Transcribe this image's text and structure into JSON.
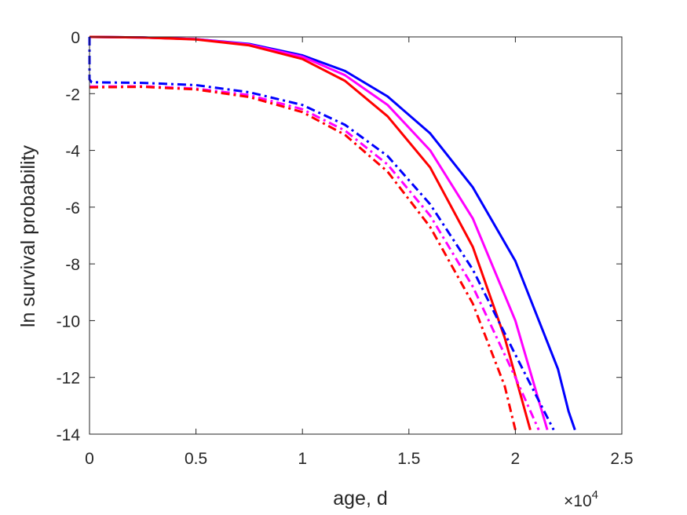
{
  "chart_data": {
    "type": "line",
    "title": "",
    "xlabel": "age, d",
    "ylabel": "ln survival probability",
    "x_exponent_label": "×10",
    "x_exponent_power": "4",
    "xlim": [
      0,
      2.5
    ],
    "ylim": [
      -14,
      0
    ],
    "x_ticks": [
      "0",
      "0.5",
      "1",
      "1.5",
      "2",
      "2.5"
    ],
    "y_ticks": [
      "0",
      "-2",
      "-4",
      "-6",
      "-8",
      "-10",
      "-12",
      "-14"
    ],
    "grid": false,
    "legend": "none",
    "series": [
      {
        "color": "#0000ff",
        "style": "solid",
        "x": [
          0,
          0.25,
          0.5,
          0.75,
          1.0,
          1.2,
          1.4,
          1.6,
          1.8,
          2.0,
          2.2,
          2.25,
          2.28
        ],
        "y": [
          0,
          -0.02,
          -0.08,
          -0.25,
          -0.65,
          -1.2,
          -2.1,
          -3.4,
          -5.3,
          -7.9,
          -11.7,
          -13.2,
          -13.85
        ]
      },
      {
        "color": "#ff00ff",
        "style": "solid",
        "x": [
          0,
          0.25,
          0.5,
          0.75,
          1.0,
          1.2,
          1.4,
          1.6,
          1.8,
          2.0,
          2.15
        ],
        "y": [
          0,
          -0.02,
          -0.08,
          -0.27,
          -0.7,
          -1.35,
          -2.4,
          -4.0,
          -6.4,
          -10.0,
          -13.85
        ]
      },
      {
        "color": "#ff0000",
        "style": "solid",
        "x": [
          0,
          0.25,
          0.5,
          0.75,
          1.0,
          1.2,
          1.4,
          1.6,
          1.8,
          1.95,
          2.07
        ],
        "y": [
          0,
          -0.02,
          -0.09,
          -0.3,
          -0.78,
          -1.55,
          -2.8,
          -4.6,
          -7.4,
          -10.6,
          -13.85
        ]
      },
      {
        "color": "#0000ff",
        "style": "dashdot",
        "x": [
          0,
          0,
          0.01,
          0.25,
          0.5,
          0.75,
          1.0,
          1.2,
          1.4,
          1.6,
          1.8,
          2.0,
          2.18
        ],
        "y": [
          0,
          -1.5,
          -1.6,
          -1.62,
          -1.7,
          -1.95,
          -2.4,
          -3.1,
          -4.2,
          -5.9,
          -8.2,
          -11.2,
          -13.85
        ]
      },
      {
        "color": "#ff00ff",
        "style": "dashdot",
        "x": [
          0,
          0.25,
          0.5,
          0.75,
          1.0,
          1.2,
          1.4,
          1.6,
          1.8,
          2.0,
          2.11
        ],
        "y": [
          -1.75,
          -1.74,
          -1.82,
          -2.05,
          -2.55,
          -3.3,
          -4.5,
          -6.3,
          -8.8,
          -12.0,
          -13.85
        ]
      },
      {
        "color": "#ff0000",
        "style": "dashdot",
        "x": [
          0,
          0.25,
          0.5,
          0.75,
          1.0,
          1.2,
          1.4,
          1.6,
          1.8,
          1.95,
          2.0
        ],
        "y": [
          -1.78,
          -1.76,
          -1.85,
          -2.12,
          -2.65,
          -3.45,
          -4.75,
          -6.7,
          -9.4,
          -12.3,
          -13.85
        ]
      }
    ]
  }
}
